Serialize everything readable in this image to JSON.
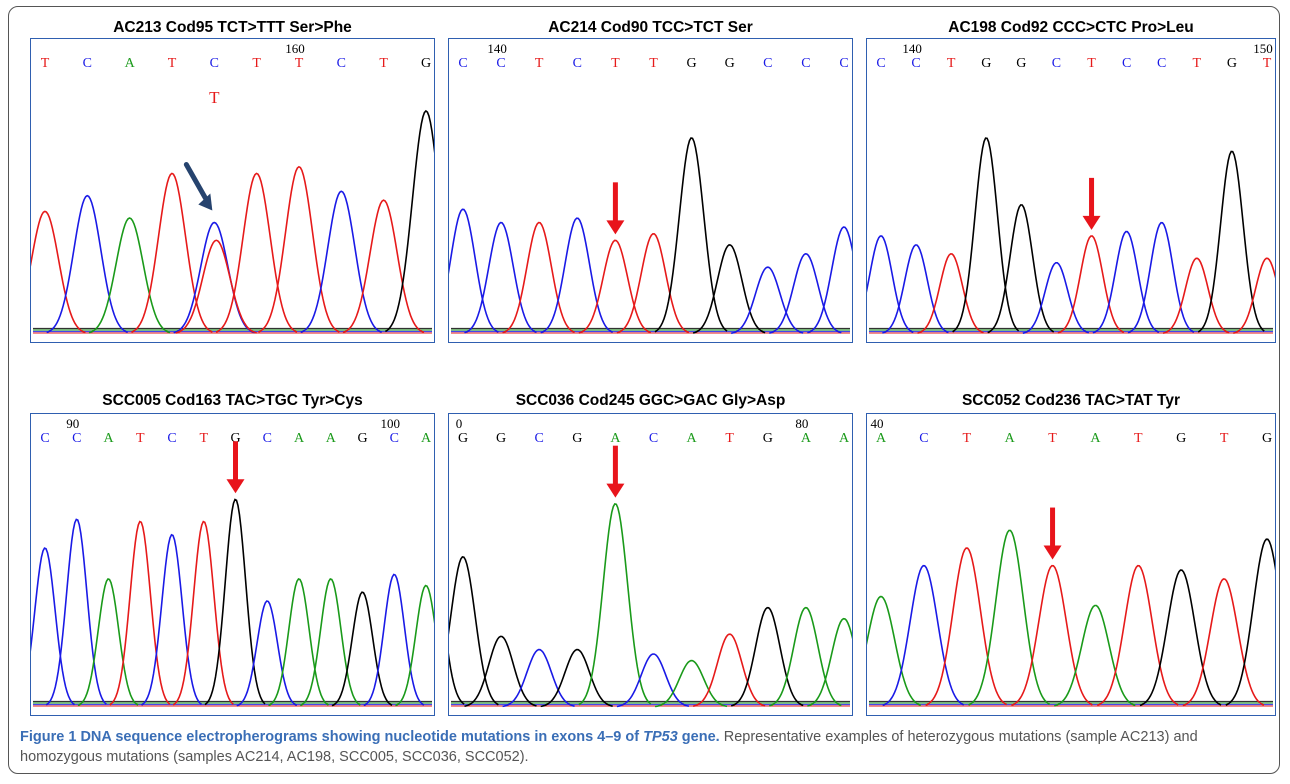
{
  "figure": {
    "caption_label": "Figure 1",
    "caption_title_pre": "DNA sequence electropherograms showing nucleotide mutations in exons 4–9 of ",
    "caption_gene": "TP53",
    "caption_title_post": " gene.",
    "caption_body": "Representative examples of heterozygous mutations (sample AC213) and homozygous mutations (samples AC214, AC198, SCC005, SCC036, SCC052)."
  },
  "colors": {
    "A": "#1a9a1a",
    "C": "#1a1ae6",
    "G": "#000000",
    "T": "#e61a1a",
    "arrow_red": "#e8141b",
    "arrow_blue": "#26436e"
  },
  "panels": [
    {
      "title": "AC213 Cod95 TCT>TTT Ser>Phe",
      "bases": [
        "T",
        "C",
        "A",
        "T",
        "C",
        "T",
        "T",
        "C",
        "T",
        "G"
      ],
      "positions": [
        {
          "label": "160",
          "after_base": 6
        }
      ],
      "alt_call": "T",
      "arrow": {
        "base": 4,
        "color": "blue"
      },
      "peaks": [
        0.55,
        0.62,
        0.52,
        0.72,
        0.5,
        0.72,
        0.75,
        0.64,
        0.6,
        1.0
      ]
    },
    {
      "title": "AC214 Cod90 TCC>TCT Ser",
      "bases": [
        "C",
        "C",
        "T",
        "C",
        "T",
        "T",
        "G",
        "G",
        "C",
        "C",
        "C"
      ],
      "positions": [
        {
          "label": "140",
          "after_base": 1
        }
      ],
      "arrow": {
        "base": 4,
        "color": "red"
      },
      "peaks": [
        0.56,
        0.5,
        0.5,
        0.52,
        0.42,
        0.45,
        0.88,
        0.4,
        0.3,
        0.36,
        0.48
      ]
    },
    {
      "title": "AC198 Cod92 CCC>CTC Pro>Leu",
      "bases": [
        "C",
        "C",
        "T",
        "G",
        "G",
        "C",
        "T",
        "C",
        "C",
        "T",
        "G",
        "T"
      ],
      "positions": [
        {
          "label": "140",
          "after_base": 1
        },
        {
          "label": "150",
          "after_base": 11
        }
      ],
      "arrow": {
        "base": 6,
        "color": "red"
      },
      "peaks": [
        0.44,
        0.4,
        0.36,
        0.88,
        0.58,
        0.32,
        0.44,
        0.46,
        0.5,
        0.34,
        0.82,
        0.34
      ]
    },
    {
      "title": "SCC005 Cod163 TAC>TGC Tyr>Cys",
      "bases": [
        "C",
        "C",
        "A",
        "T",
        "C",
        "T",
        "G",
        "C",
        "A",
        "A",
        "G",
        "C",
        "A"
      ],
      "positions": [
        {
          "label": "90",
          "after_base": 1
        },
        {
          "label": "100",
          "after_base": 11
        }
      ],
      "arrow": {
        "base": 6,
        "color": "red"
      },
      "peaks": [
        0.72,
        0.85,
        0.58,
        0.84,
        0.78,
        0.84,
        0.94,
        0.48,
        0.58,
        0.58,
        0.52,
        0.6,
        0.55
      ]
    },
    {
      "title": "SCC036 Cod245 GGC>GAC Gly>Asp",
      "bases": [
        "G",
        "G",
        "C",
        "G",
        "A",
        "C",
        "A",
        "T",
        "G",
        "A",
        "A"
      ],
      "positions": [
        {
          "label": "0",
          "after_base": 0
        },
        {
          "label": "80",
          "after_base": 9
        }
      ],
      "arrow": {
        "base": 4,
        "color": "red"
      },
      "peaks": [
        0.68,
        0.32,
        0.26,
        0.26,
        0.92,
        0.24,
        0.21,
        0.33,
        0.45,
        0.45,
        0.4
      ],
      "lead_peak": 0.88
    },
    {
      "title": "SCC052 Cod236 TAC>TAT Tyr",
      "bases": [
        "A",
        "C",
        "T",
        "A",
        "T",
        "A",
        "T",
        "G",
        "T",
        "G"
      ],
      "positions": [
        {
          "label": "40",
          "after_base": 0
        }
      ],
      "arrow": {
        "base": 4,
        "color": "red"
      },
      "peaks": [
        0.5,
        0.64,
        0.72,
        0.8,
        0.64,
        0.46,
        0.64,
        0.62,
        0.58,
        0.76
      ]
    }
  ]
}
